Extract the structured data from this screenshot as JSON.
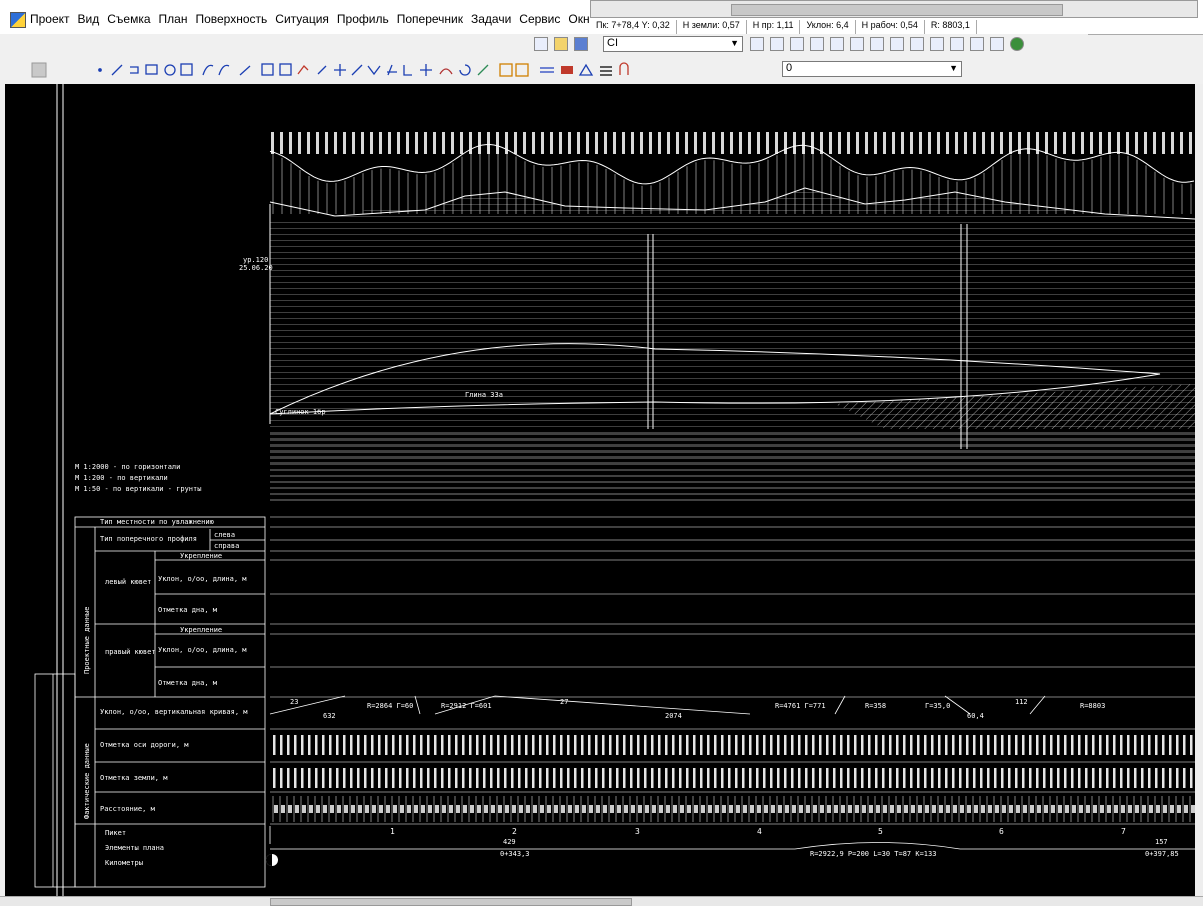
{
  "menu": {
    "items": [
      "Проект",
      "Вид",
      "Съемка",
      "План",
      "Поверхность",
      "Ситуация",
      "Профиль",
      "Поперечник",
      "Задачи",
      "Сервис",
      "Окн"
    ]
  },
  "status": {
    "pk": "Пк: 7+78,4 Y: 0,32",
    "h_ground": "Н земли: 0,57",
    "h_design": "Н пр: 1,11",
    "slope": "Уклон: 6,4",
    "h_work": "Н рабоч: 0,54",
    "radius": "R: 8803,1"
  },
  "toolbar": {
    "layer_value": "CI",
    "lineweight_value": "0"
  },
  "drawing": {
    "scale_notes": [
      "М 1:2000 - по горизонтали",
      "М 1:200 - по вертикали",
      "М 1:50 - по вертикали - грунты"
    ],
    "left_marks": {
      "level": "ур.120",
      "date": "25.06.20"
    },
    "soil_labels": [
      "Суглинок 1бр",
      "Глина 33а"
    ],
    "table": {
      "row_terrain": "Тип местности по увлажнению",
      "row_cross": "Тип поперечного профиля",
      "left": "слева",
      "right": "справа",
      "left_ditch": "левый кювет",
      "right_ditch": "правый кювет",
      "strengthening": "Укрепление",
      "slope_len": "Уклон, о/оо, длина, м",
      "bottom_mark": "Отметка дна, м",
      "design_group": "Проектные данные",
      "actual_group": "Фактические данные",
      "row_slope_vc": "Уклон, о/оо, вертикальная кривая, м",
      "row_axis": "Отметка оси дороги, м",
      "row_ground": "Отметка земли, м",
      "row_distance": "Расстояние, м",
      "row_picket": "Пикет",
      "row_plan": "Элементы плана",
      "row_km": "Километры"
    },
    "slope_values": [
      "23",
      "632",
      "R=2864 Г=60",
      "R=2912 Г=601",
      "27",
      "2074",
      "R=4761 Г=771",
      "R=358",
      "Г=35,0",
      "112",
      "60,4",
      "R=8803"
    ],
    "picket_numbers": [
      "1",
      "2",
      "3",
      "4",
      "5",
      "6",
      "7"
    ],
    "plan_labels": [
      "429",
      "R=2922,9  Р=200  L=30  Т=87  К=133",
      "157"
    ],
    "km_labels": [
      "0+343,3",
      "0+397,85"
    ]
  }
}
